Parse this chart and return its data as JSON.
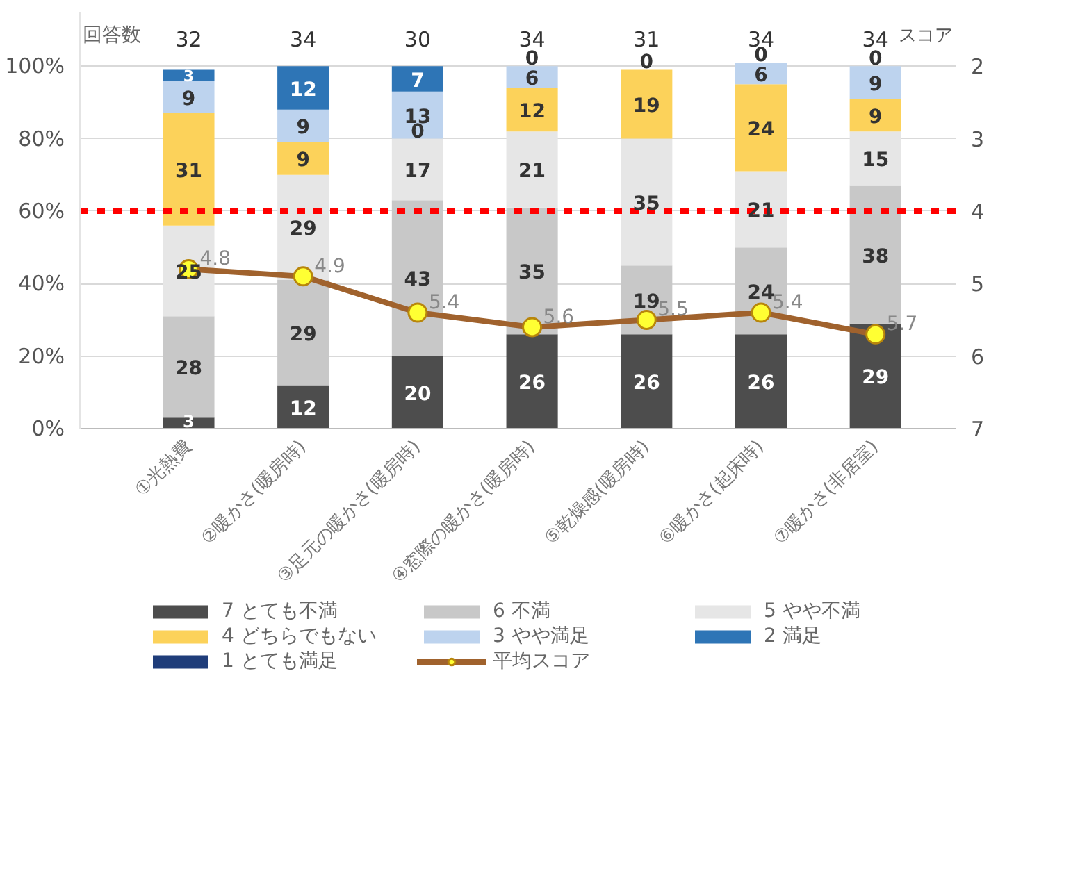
{
  "chart_data": {
    "type": "bar",
    "stacked": true,
    "categories": [
      "①光熱費",
      "②暖かさ(暖房時)",
      "③足元の暖かさ(暖房時)",
      "④窓際の暖かさ(暖房時)",
      "⑤乾燥感(暖房時)",
      "⑥暖かさ(起床時)",
      "⑦暖かさ(非居室)"
    ],
    "series": [
      {
        "name": "7 とても不満",
        "color": "#4d4d4d",
        "values": [
          3,
          12,
          20,
          26,
          26,
          26,
          29
        ],
        "value_labels": [
          "3",
          "12",
          "20",
          "26",
          "26",
          "26",
          "29"
        ]
      },
      {
        "name": "6 不満",
        "color": "#c8c8c8",
        "values": [
          28,
          29,
          43,
          35,
          19,
          24,
          38
        ],
        "value_labels": [
          "28",
          "29",
          "43",
          "35",
          "19",
          "24",
          "38"
        ]
      },
      {
        "name": "5 やや不満",
        "color": "#e6e6e6",
        "values": [
          25,
          29,
          17,
          21,
          35,
          21,
          15
        ],
        "value_labels": [
          "25",
          "29",
          "17",
          "21",
          "35",
          "21",
          "15"
        ]
      },
      {
        "name": "4 どちらでもない",
        "color": "#fcd25a",
        "values": [
          31,
          9,
          0,
          12,
          19,
          24,
          9
        ],
        "value_labels": [
          "31",
          "9",
          "0",
          "12",
          "19",
          "24",
          "9"
        ]
      },
      {
        "name": "3 やや満足",
        "color": "#bdd3ee",
        "values": [
          9,
          9,
          13,
          6,
          0,
          6,
          9
        ],
        "value_labels": [
          "9",
          "9",
          "13",
          "6",
          "0",
          "6",
          "9"
        ]
      },
      {
        "name": "2 満足",
        "color": "#2e75b6",
        "values": [
          3,
          12,
          7,
          0,
          null,
          0,
          0
        ],
        "value_labels": [
          "3",
          "12",
          "7",
          "0",
          null,
          "0",
          "0"
        ]
      },
      {
        "name": "1 とても満足",
        "color": "#1f3d7a",
        "values": [
          null,
          null,
          null,
          null,
          null,
          null,
          null
        ]
      },
      {
        "name": "平均スコア",
        "type": "line",
        "axis": "y2",
        "color": "#a0622d",
        "values": [
          4.8,
          4.9,
          5.4,
          5.6,
          5.5,
          5.4,
          5.7
        ]
      },
      {
        "type": "scatter",
        "axis": "y2",
        "color": "#ffff33",
        "marker": "circle",
        "values": [
          4.8,
          4.9,
          5.4,
          5.6,
          5.5,
          5.4,
          5.7
        ],
        "value_labels": [
          "4.8",
          "4.9",
          "5.4",
          "5.6",
          "5.5",
          "5.4",
          "5.7"
        ]
      }
    ],
    "ylim": [
      0,
      115
    ],
    "yticks": [
      {
        "value": 0,
        "label": "0%"
      },
      {
        "value": 20,
        "label": "20%"
      },
      {
        "value": 40,
        "label": "40%"
      },
      {
        "value": 60,
        "label": "60%"
      },
      {
        "value": 80,
        "label": "80%"
      },
      {
        "value": 100,
        "label": "100%"
      }
    ],
    "y2lim": [
      7,
      1.25
    ],
    "y2ticks": [
      2,
      3,
      4,
      5,
      6,
      7
    ],
    "y2label": "スコア",
    "ref_lines": [
      {
        "axis": "y2",
        "value": 4,
        "color": "#ff0000",
        "line_style": "dashed"
      }
    ],
    "annotations": [
      "回答数",
      "32",
      "34",
      "30",
      "34",
      "31",
      "34",
      "34"
    ],
    "grid": "y",
    "legend": "bottom"
  }
}
